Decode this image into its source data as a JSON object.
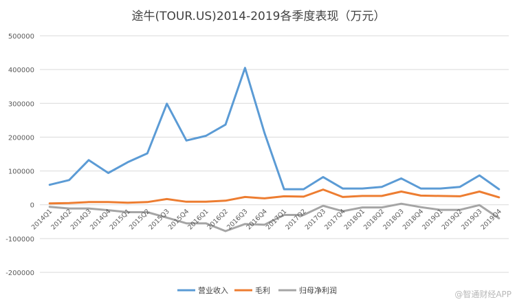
{
  "watermark": "@智通财经APP",
  "chart_data": {
    "type": "line",
    "title": "途牛(TOUR.US)2014-2019各季度表现（万元）",
    "ylim": [
      -200000,
      500000
    ],
    "yticks": [
      500000,
      400000,
      300000,
      200000,
      100000,
      0,
      -100000,
      -200000
    ],
    "grid": true,
    "legend_position": "bottom",
    "categories": [
      "2014Q1",
      "2014Q2",
      "2014Q3",
      "2014Q4",
      "2015Q1",
      "2015Q2",
      "2015Q3",
      "2015Q4",
      "2016Q1",
      "2016Q2",
      "2016Q3",
      "2016Q4",
      "2017Q1",
      "2017Q2",
      "2017Q3",
      "2017Q4",
      "2018Q1",
      "2018Q2",
      "2018Q3",
      "2018Q4",
      "2019Q1",
      "2019Q2",
      "2019Q3",
      "2019Q4"
    ],
    "series": [
      {
        "name": "营业收入",
        "color": "#5b9bd5",
        "values": [
          59000,
          73000,
          132000,
          94000,
          126000,
          152000,
          299000,
          190000,
          204000,
          237000,
          405000,
          212000,
          46000,
          46000,
          82000,
          48000,
          48000,
          53000,
          78000,
          48000,
          48000,
          53000,
          87000,
          46000
        ]
      },
      {
        "name": "毛利",
        "color": "#ed7d31",
        "values": [
          4000,
          5000,
          8000,
          8000,
          6000,
          8000,
          17000,
          9000,
          9000,
          12000,
          23000,
          19000,
          25000,
          24000,
          45000,
          23000,
          26000,
          26000,
          39000,
          27000,
          26000,
          25000,
          39000,
          22000
        ]
      },
      {
        "name": "归母净利润",
        "color": "#a5a5a5",
        "values": [
          -6000,
          -11000,
          -11000,
          -16000,
          -22000,
          -22000,
          -38000,
          -55000,
          -55000,
          -78000,
          -57000,
          -59000,
          -30000,
          -30000,
          -3000,
          -19000,
          -8000,
          -8000,
          3000,
          -7000,
          -15000,
          -15000,
          -1000,
          -40000
        ]
      }
    ]
  }
}
